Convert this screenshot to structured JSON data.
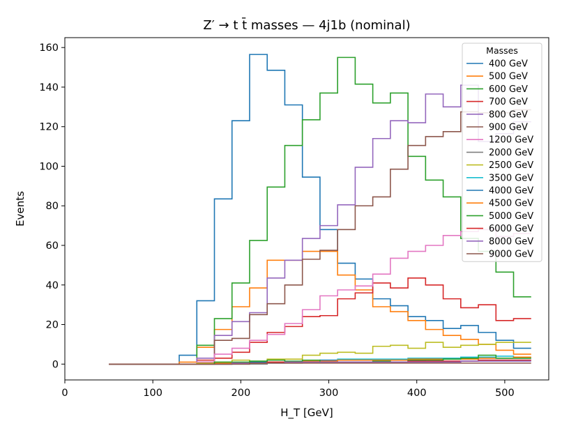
{
  "chart_data": {
    "type": "step",
    "title": "Z′ → t t̄ masses — 4j1b (nominal)",
    "xlabel": "H_T [GeV]",
    "ylabel": "Events",
    "xlim": [
      0,
      550
    ],
    "ylim": [
      -8,
      165
    ],
    "xticks": [
      0,
      100,
      200,
      300,
      400,
      500
    ],
    "yticks": [
      0,
      20,
      40,
      60,
      80,
      100,
      120,
      140,
      160
    ],
    "bin_edges": [
      50,
      70,
      90,
      110,
      130,
      150,
      170,
      190,
      210,
      230,
      250,
      270,
      290,
      310,
      330,
      350,
      370,
      390,
      410,
      430,
      450,
      470,
      490,
      510,
      530
    ],
    "legend": {
      "title": "Masses",
      "placement": "upper right"
    },
    "series": [
      {
        "name": "400 GeV",
        "color": "#1f77b4",
        "values": [
          0,
          0,
          0,
          0,
          4.5,
          32,
          83.5,
          123,
          156.5,
          148.5,
          131,
          94.5,
          68,
          51,
          43,
          33,
          29.5,
          24,
          22,
          18,
          19.5,
          16,
          12,
          8
        ]
      },
      {
        "name": "500 GeV",
        "color": "#ff7f0e",
        "values": [
          0,
          0,
          0,
          0,
          1,
          8.5,
          17.5,
          29,
          38.5,
          52.5,
          52.5,
          57,
          57,
          45,
          37.5,
          29,
          26.5,
          22,
          17.5,
          14.5,
          12.5,
          10,
          7,
          5
        ]
      },
      {
        "name": "600 GeV",
        "color": "#2ca02c",
        "values": [
          0,
          0,
          0,
          0,
          0,
          9.5,
          23,
          41,
          62.5,
          89.5,
          110.5,
          123.5,
          137,
          155,
          141.5,
          132,
          137,
          105,
          93,
          84.5,
          63.5,
          57,
          46.5,
          34
        ]
      },
      {
        "name": "700 GeV",
        "color": "#d62728",
        "values": [
          0,
          0,
          0,
          0,
          0,
          2,
          3,
          6,
          11,
          16,
          19,
          24,
          24.5,
          33,
          36,
          41,
          38.5,
          43.5,
          40,
          33,
          28.5,
          30,
          22,
          23
        ]
      },
      {
        "name": "800 GeV",
        "color": "#9467bd",
        "values": [
          0,
          0,
          0,
          0,
          0,
          3,
          14.5,
          21.5,
          26,
          43.5,
          52.5,
          63.5,
          70,
          80.5,
          99.5,
          114,
          123,
          122,
          136.5,
          130,
          141,
          112.5,
          116.5,
          122.5
        ]
      },
      {
        "name": "900 GeV",
        "color": "#8c564b",
        "values": [
          0,
          0,
          0,
          0,
          0,
          1,
          12,
          13,
          25,
          30.5,
          40,
          53,
          57.5,
          68,
          80,
          84.5,
          98.5,
          110.5,
          115,
          117.5,
          127.5,
          127,
          127,
          128.5
        ]
      },
      {
        "name": "1200 GeV",
        "color": "#e377c2",
        "values": [
          0,
          0,
          0,
          0,
          0,
          1,
          5,
          8,
          12,
          15,
          20.5,
          27.5,
          34.5,
          37.5,
          39.5,
          45.5,
          53.5,
          57,
          60,
          65,
          67,
          68,
          64.5,
          66
        ]
      },
      {
        "name": "2000 GeV",
        "color": "#7f7f7f",
        "values": [
          0,
          0,
          0,
          0,
          0,
          0,
          0,
          0,
          0,
          0.5,
          0.5,
          1,
          1,
          1,
          1,
          1,
          1,
          1,
          1,
          1.5,
          1.5,
          2,
          2,
          2
        ]
      },
      {
        "name": "2500 GeV",
        "color": "#bcbd22",
        "values": [
          0,
          0,
          0,
          0,
          0,
          0.5,
          1,
          2,
          1.5,
          2.5,
          2.5,
          4.5,
          5.5,
          6,
          5.5,
          9,
          9.5,
          8,
          11,
          8.5,
          9.5,
          10,
          11,
          11
        ]
      },
      {
        "name": "3500 GeV",
        "color": "#17becf",
        "values": [
          0,
          0,
          0,
          0,
          0,
          0,
          0,
          0.5,
          0.5,
          1,
          1,
          1.5,
          2,
          2.5,
          2.5,
          2.5,
          2.5,
          3,
          3,
          3,
          3.5,
          3.5,
          4,
          3.5
        ]
      },
      {
        "name": "4000 GeV",
        "color": "#1f77b4",
        "values": [
          0,
          0,
          0,
          0,
          0,
          0,
          0,
          0.5,
          1,
          1,
          1,
          1.5,
          2,
          2,
          2,
          2,
          2,
          2,
          2.5,
          2.5,
          3,
          3,
          3,
          3
        ]
      },
      {
        "name": "4500 GeV",
        "color": "#ff7f0e",
        "values": [
          0,
          0,
          0,
          0,
          0,
          0,
          0.5,
          0.5,
          0.5,
          1,
          1,
          1.5,
          1.5,
          2,
          2,
          2,
          2,
          2.5,
          2.5,
          2.5,
          2.5,
          3,
          3,
          3.5
        ]
      },
      {
        "name": "5000 GeV",
        "color": "#2ca02c",
        "values": [
          0,
          0,
          0,
          0,
          0,
          0,
          1,
          1,
          1.5,
          2,
          1.5,
          2,
          1,
          1,
          1,
          1.5,
          1,
          2,
          2,
          2.5,
          3,
          4.5,
          3,
          3
        ]
      },
      {
        "name": "6000 GeV",
        "color": "#d62728",
        "values": [
          0,
          0,
          0,
          0,
          0,
          0,
          0,
          0.5,
          0.5,
          1,
          1,
          1,
          1,
          1,
          1,
          1,
          1,
          1.5,
          1.5,
          1.5,
          1.5,
          2,
          2,
          2
        ]
      },
      {
        "name": "8000 GeV",
        "color": "#9467bd",
        "values": [
          0,
          0,
          0,
          0,
          0,
          0,
          0,
          0.5,
          0.5,
          0.5,
          1,
          1,
          1,
          1,
          1,
          1,
          1,
          1,
          1,
          1,
          1.5,
          1.5,
          1.5,
          1.5
        ]
      },
      {
        "name": "9000 GeV",
        "color": "#8c564b",
        "values": [
          0,
          0,
          0,
          0,
          0,
          0,
          0,
          0,
          0.5,
          0.5,
          0.5,
          0.5,
          0.5,
          0.5,
          0.5,
          0.5,
          0.5,
          0.5,
          0.5,
          0.5,
          0.5,
          0.5,
          0.5,
          0.5
        ]
      }
    ]
  }
}
